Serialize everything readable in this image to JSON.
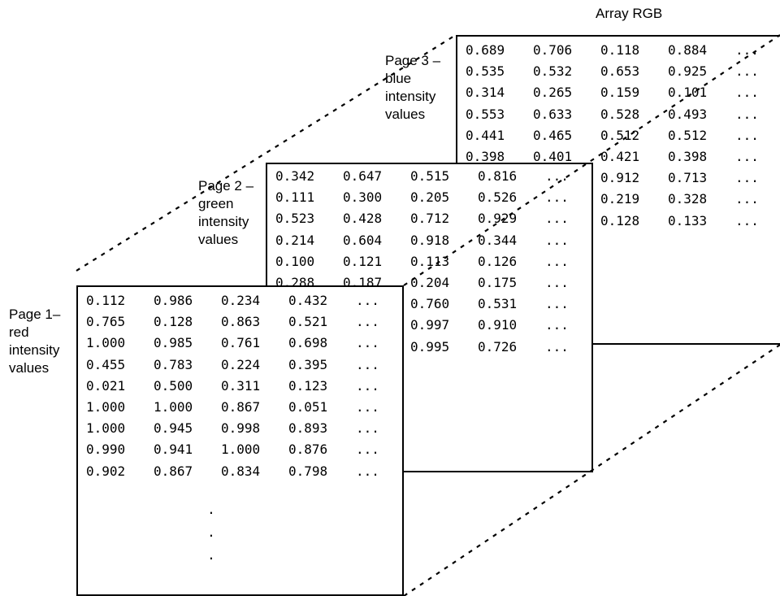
{
  "title": "Array RGB",
  "pages": [
    {
      "label_lines": [
        "Page 3 –",
        "blue",
        "intensity",
        "values"
      ],
      "rows": [
        [
          "0.689",
          "0.706",
          "0.118",
          "0.884",
          "..."
        ],
        [
          "0.535",
          "0.532",
          "0.653",
          "0.925",
          "..."
        ],
        [
          "0.314",
          "0.265",
          "0.159",
          "0.101",
          "..."
        ],
        [
          "0.553",
          "0.633",
          "0.528",
          "0.493",
          "..."
        ],
        [
          "0.441",
          "0.465",
          "0.512",
          "0.512",
          "..."
        ],
        [
          "0.398",
          "0.401",
          "0.421",
          "0.398",
          "..."
        ],
        [
          "",
          "",
          "0.912",
          "0.713",
          "..."
        ],
        [
          "",
          "",
          "0.219",
          "0.328",
          "..."
        ],
        [
          "",
          "",
          "0.128",
          "0.133",
          "..."
        ]
      ]
    },
    {
      "label_lines": [
        "Page 2 –",
        "green",
        "intensity",
        "values"
      ],
      "rows": [
        [
          "0.342",
          "0.647",
          "0.515",
          "0.816",
          "..."
        ],
        [
          "0.111",
          "0.300",
          "0.205",
          "0.526",
          "..."
        ],
        [
          "0.523",
          "0.428",
          "0.712",
          "0.929",
          "..."
        ],
        [
          "0.214",
          "0.604",
          "0.918",
          "0.344",
          "..."
        ],
        [
          "0.100",
          "0.121",
          "0.113",
          "0.126",
          "..."
        ],
        [
          "0.288",
          "0.187",
          "0.204",
          "0.175",
          "..."
        ],
        [
          "",
          "",
          "0.760",
          "0.531",
          "..."
        ],
        [
          "",
          "",
          "0.997",
          "0.910",
          "..."
        ],
        [
          "",
          "",
          "0.995",
          "0.726",
          "..."
        ]
      ]
    },
    {
      "label_lines": [
        "Page 1–",
        "red",
        "intensity",
        "values"
      ],
      "rows": [
        [
          "0.112",
          "0.986",
          "0.234",
          "0.432",
          "..."
        ],
        [
          "0.765",
          "0.128",
          "0.863",
          "0.521",
          "..."
        ],
        [
          "1.000",
          "0.985",
          "0.761",
          "0.698",
          "..."
        ],
        [
          "0.455",
          "0.783",
          "0.224",
          "0.395",
          "..."
        ],
        [
          "0.021",
          "0.500",
          "0.311",
          "0.123",
          "..."
        ],
        [
          "1.000",
          "1.000",
          "0.867",
          "0.051",
          "..."
        ],
        [
          "1.000",
          "0.945",
          "0.998",
          "0.893",
          "..."
        ],
        [
          "0.990",
          "0.941",
          "1.000",
          "0.876",
          "..."
        ],
        [
          "0.902",
          "0.867",
          "0.834",
          "0.798",
          "..."
        ]
      ],
      "vdots": [
        ".",
        ".",
        "."
      ]
    }
  ]
}
